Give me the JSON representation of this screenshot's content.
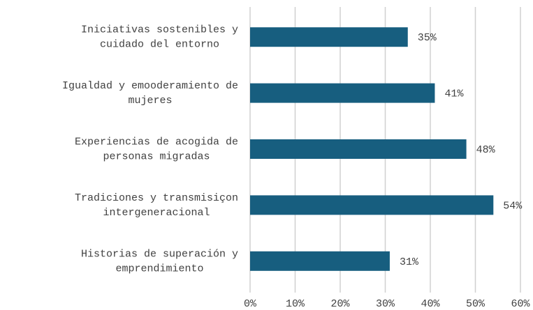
{
  "chart_data": {
    "type": "bar",
    "orientation": "horizontal",
    "categories": [
      [
        "Iniciativas sostenibles y",
        "cuidado del entorno"
      ],
      [
        "Igualdad y emooderamiento de",
        "mujeres"
      ],
      [
        "Experiencias de acogida de",
        "personas migradas"
      ],
      [
        "Tradiciones y transmisiçon",
        "intergeneracional"
      ],
      [
        "Historias de superación y",
        "emprendimiento"
      ]
    ],
    "values": [
      35,
      41,
      48,
      54,
      31
    ],
    "value_labels": [
      "35%",
      "41%",
      "48%",
      "54%",
      "31%"
    ],
    "color": "#175e7f",
    "xlim": [
      0,
      60
    ],
    "xticks": [
      {
        "value": 0,
        "label": "0%"
      },
      {
        "value": 10,
        "label": "10%"
      },
      {
        "value": 20,
        "label": "20%"
      },
      {
        "value": 30,
        "label": "30%"
      },
      {
        "value": 40,
        "label": "40%"
      },
      {
        "value": 50,
        "label": "50%"
      },
      {
        "value": 60,
        "label": "60%"
      }
    ],
    "grid": true
  }
}
